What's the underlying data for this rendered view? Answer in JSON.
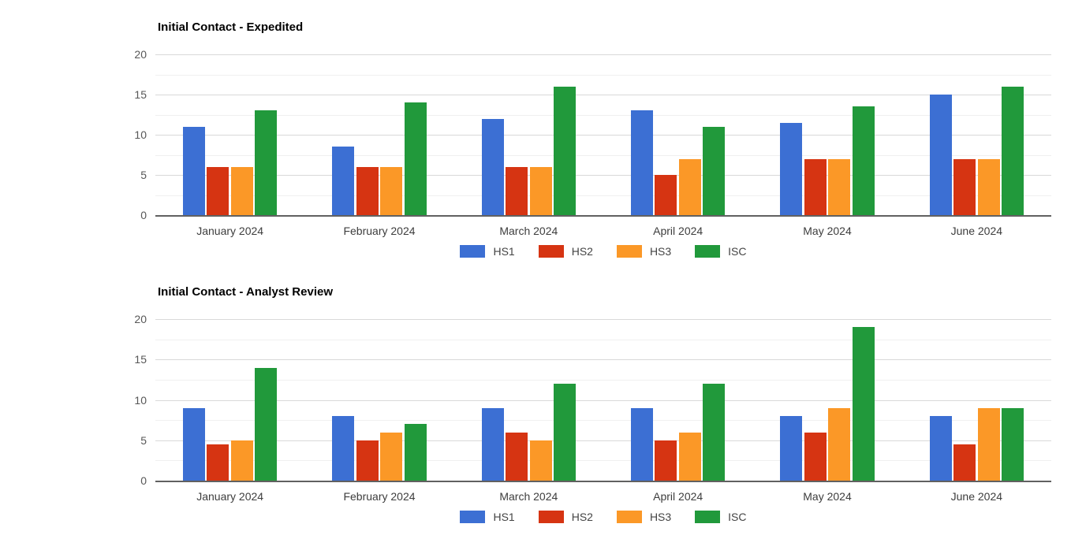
{
  "page": {
    "background": "#ffffff",
    "text_colors": {
      "title": "#000000",
      "axis_ticks": "#575757",
      "category_labels": "#3d3d3d",
      "legend_labels": "#444444"
    },
    "grid_colors": {
      "major": "#d9d9d9",
      "minor": "#f0f0f0",
      "baseline": "#616161"
    }
  },
  "palette": {
    "HS1": "#3c6fd3",
    "HS2": "#d63412",
    "HS3": "#fb9827",
    "ISC": "#21993b"
  },
  "chart_data": [
    {
      "type": "bar",
      "title": "Initial Contact - Expedited",
      "categories": [
        "January 2024",
        "February 2024",
        "March 2024",
        "April 2024",
        "May 2024",
        "June 2024"
      ],
      "series": [
        {
          "name": "HS1",
          "color": "#3c6fd3",
          "values": [
            11,
            8.5,
            12,
            13,
            11.5,
            15
          ]
        },
        {
          "name": "HS2",
          "color": "#d63412",
          "values": [
            6,
            6,
            6,
            5,
            7,
            7
          ]
        },
        {
          "name": "HS3",
          "color": "#fb9827",
          "values": [
            6,
            6,
            6,
            7,
            7,
            7
          ]
        },
        {
          "name": "ISC",
          "color": "#21993b",
          "values": [
            13,
            14,
            16,
            11,
            13.5,
            16
          ]
        }
      ],
      "xlabel": "",
      "ylabel": "",
      "ylim": [
        0,
        20
      ],
      "yticks": [
        0,
        5,
        10,
        15,
        20
      ],
      "minor_gridline_step": 2.5,
      "grid": true,
      "legend_position": "bottom"
    },
    {
      "type": "bar",
      "title": "Initial Contact - Analyst Review",
      "categories": [
        "January 2024",
        "February 2024",
        "March 2024",
        "April 2024",
        "May 2024",
        "June 2024"
      ],
      "series": [
        {
          "name": "HS1",
          "color": "#3c6fd3",
          "values": [
            9,
            8,
            9,
            9,
            8,
            8
          ]
        },
        {
          "name": "HS2",
          "color": "#d63412",
          "values": [
            4.5,
            5,
            6,
            5,
            6,
            4.5
          ]
        },
        {
          "name": "HS3",
          "color": "#fb9827",
          "values": [
            5,
            6,
            5,
            6,
            9,
            9
          ]
        },
        {
          "name": "ISC",
          "color": "#21993b",
          "values": [
            14,
            7,
            12,
            12,
            19,
            9
          ]
        }
      ],
      "xlabel": "",
      "ylabel": "",
      "ylim": [
        0,
        20
      ],
      "yticks": [
        0,
        5,
        10,
        15,
        20
      ],
      "minor_gridline_step": 2.5,
      "grid": true,
      "legend_position": "bottom"
    }
  ]
}
